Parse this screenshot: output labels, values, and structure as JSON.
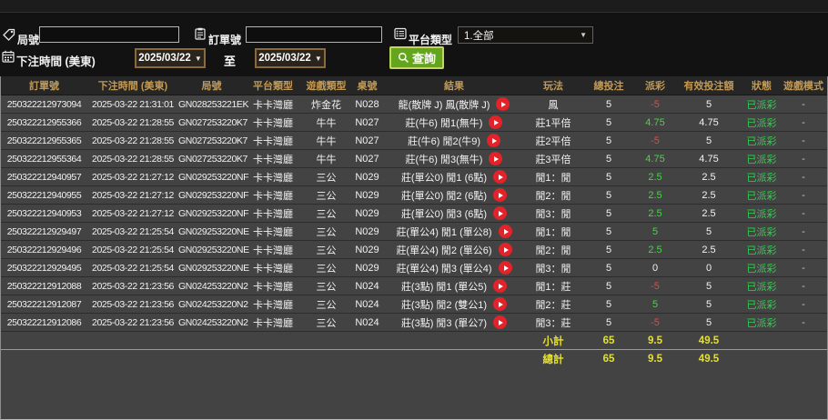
{
  "filters": {
    "round_label": "局號",
    "round_value": "",
    "order_label": "訂單號",
    "order_value": "",
    "platform_label": "平台類型",
    "platform_value": "1.全部",
    "bet_time_label": "下注時間 (美東)",
    "date_from": "2025/03/22",
    "date_to": "2025/03/22",
    "to_label": "至",
    "search_label": "查詢",
    "dropdown_arrow": "▼"
  },
  "table": {
    "headers": [
      "訂單號",
      "下注時間 (美東)",
      "局號",
      "平台類型",
      "遊戲類型",
      "桌號",
      "結果",
      "玩法",
      "總投注",
      "派彩",
      "有效投注額",
      "狀態",
      "遊戲模式"
    ],
    "rows": [
      {
        "order": "250322212973094",
        "time": "2025-03-22 21:31:01",
        "round": "GN028253221EK",
        "platform": "卡卡灣廳",
        "game": "炸金花",
        "table_no": "N028",
        "result": "龍(散牌 J) 鳳(散牌 J)",
        "play_method": "鳳",
        "total": "5",
        "payout": "-5",
        "valid": "5",
        "status": "已派彩",
        "mode": "-"
      },
      {
        "order": "250322212955366",
        "time": "2025-03-22 21:28:55",
        "round": "GN027253220K7",
        "platform": "卡卡灣廳",
        "game": "牛牛",
        "table_no": "N027",
        "result": "莊(牛6) 閒1(無牛)",
        "play_method": "莊1平倍",
        "total": "5",
        "payout": "4.75",
        "valid": "4.75",
        "status": "已派彩",
        "mode": "-"
      },
      {
        "order": "250322212955365",
        "time": "2025-03-22 21:28:55",
        "round": "GN027253220K7",
        "platform": "卡卡灣廳",
        "game": "牛牛",
        "table_no": "N027",
        "result": "莊(牛6) 閒2(牛9)",
        "play_method": "莊2平倍",
        "total": "5",
        "payout": "-5",
        "valid": "5",
        "status": "已派彩",
        "mode": "-"
      },
      {
        "order": "250322212955364",
        "time": "2025-03-22 21:28:55",
        "round": "GN027253220K7",
        "platform": "卡卡灣廳",
        "game": "牛牛",
        "table_no": "N027",
        "result": "莊(牛6) 閒3(無牛)",
        "play_method": "莊3平倍",
        "total": "5",
        "payout": "4.75",
        "valid": "4.75",
        "status": "已派彩",
        "mode": "-"
      },
      {
        "order": "250322212940957",
        "time": "2025-03-22 21:27:12",
        "round": "GN029253220NF",
        "platform": "卡卡灣廳",
        "game": "三公",
        "table_no": "N029",
        "result": "莊(單公0) 閒1 (6點)",
        "play_method": "閒1：閒",
        "total": "5",
        "payout": "2.5",
        "valid": "2.5",
        "status": "已派彩",
        "mode": "-"
      },
      {
        "order": "250322212940955",
        "time": "2025-03-22 21:27:12",
        "round": "GN029253220NF",
        "platform": "卡卡灣廳",
        "game": "三公",
        "table_no": "N029",
        "result": "莊(單公0) 閒2 (6點)",
        "play_method": "閒2：閒",
        "total": "5",
        "payout": "2.5",
        "valid": "2.5",
        "status": "已派彩",
        "mode": "-"
      },
      {
        "order": "250322212940953",
        "time": "2025-03-22 21:27:12",
        "round": "GN029253220NF",
        "platform": "卡卡灣廳",
        "game": "三公",
        "table_no": "N029",
        "result": "莊(單公0) 閒3 (6點)",
        "play_method": "閒3：閒",
        "total": "5",
        "payout": "2.5",
        "valid": "2.5",
        "status": "已派彩",
        "mode": "-"
      },
      {
        "order": "250322212929497",
        "time": "2025-03-22 21:25:54",
        "round": "GN029253220NE",
        "platform": "卡卡灣廳",
        "game": "三公",
        "table_no": "N029",
        "result": "莊(單公4) 閒1 (單公8)",
        "play_method": "閒1：閒",
        "total": "5",
        "payout": "5",
        "valid": "5",
        "status": "已派彩",
        "mode": "-"
      },
      {
        "order": "250322212929496",
        "time": "2025-03-22 21:25:54",
        "round": "GN029253220NE",
        "platform": "卡卡灣廳",
        "game": "三公",
        "table_no": "N029",
        "result": "莊(單公4) 閒2 (單公6)",
        "play_method": "閒2：閒",
        "total": "5",
        "payout": "2.5",
        "valid": "2.5",
        "status": "已派彩",
        "mode": "-"
      },
      {
        "order": "250322212929495",
        "time": "2025-03-22 21:25:54",
        "round": "GN029253220NE",
        "platform": "卡卡灣廳",
        "game": "三公",
        "table_no": "N029",
        "result": "莊(單公4) 閒3 (單公4)",
        "play_method": "閒3：閒",
        "total": "5",
        "payout": "0",
        "valid": "0",
        "status": "已派彩",
        "mode": "-"
      },
      {
        "order": "250322212912088",
        "time": "2025-03-22 21:23:56",
        "round": "GN024253220N2",
        "platform": "卡卡灣廳",
        "game": "三公",
        "table_no": "N024",
        "result": "莊(3點) 閒1 (單公5)",
        "play_method": "閒1：莊",
        "total": "5",
        "payout": "-5",
        "valid": "5",
        "status": "已派彩",
        "mode": "-"
      },
      {
        "order": "250322212912087",
        "time": "2025-03-22 21:23:56",
        "round": "GN024253220N2",
        "platform": "卡卡灣廳",
        "game": "三公",
        "table_no": "N024",
        "result": "莊(3點) 閒2 (雙公1)",
        "play_method": "閒2：莊",
        "total": "5",
        "payout": "5",
        "valid": "5",
        "status": "已派彩",
        "mode": "-"
      },
      {
        "order": "250322212912086",
        "time": "2025-03-22 21:23:56",
        "round": "GN024253220N2",
        "platform": "卡卡灣廳",
        "game": "三公",
        "table_no": "N024",
        "result": "莊(3點) 閒3 (單公7)",
        "play_method": "閒3：莊",
        "total": "5",
        "payout": "-5",
        "valid": "5",
        "status": "已派彩",
        "mode": "-"
      }
    ],
    "subtotal": {
      "label": "小計",
      "total": "65",
      "payout": "9.5",
      "valid": "49.5"
    },
    "grand_total": {
      "label": "總計",
      "total": "65",
      "payout": "9.5",
      "valid": "49.5"
    }
  },
  "colors": {
    "header_text": "#c29a55",
    "payout_positive": "#3fdb3f",
    "payout_negative": "#ee4444",
    "status_green": "#2ed04e",
    "summary_yellow": "#e4e02e",
    "search_button": "#63a51d",
    "date_border": "#8a6a3c",
    "row_bg": "#434343",
    "play_button_red": "#e3222a"
  }
}
